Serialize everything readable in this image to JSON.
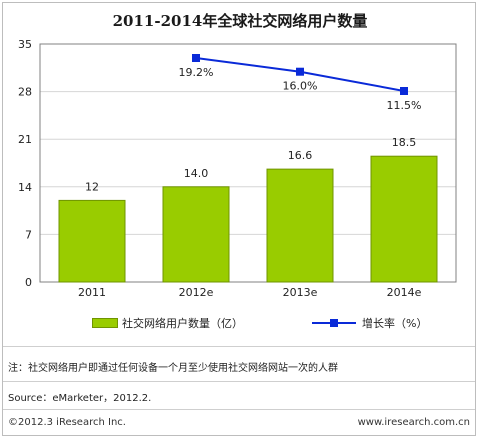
{
  "title": "2011-2014年全球社交网络用户数量",
  "chart_data": {
    "type": "bar+line",
    "categories": [
      "2011",
      "2012e",
      "2013e",
      "2014e"
    ],
    "series": [
      {
        "name": "社交网络用户数量（亿）",
        "type": "bar",
        "values": [
          12,
          14.0,
          16.6,
          18.5
        ],
        "labels": [
          "12",
          "14.0",
          "16.6",
          "18.5"
        ],
        "color": "#99cc00"
      },
      {
        "name": "增长率（%）",
        "type": "line",
        "x": [
          "2012e",
          "2013e",
          "2014e"
        ],
        "values": [
          19.2,
          16.0,
          11.5
        ],
        "labels": [
          "19.2%",
          "16.0%",
          "11.5%"
        ],
        "color": "#0a2ad8"
      }
    ],
    "y_ticks": [
      "0",
      "7",
      "14",
      "21",
      "28",
      "35"
    ],
    "ylim": [
      0,
      35
    ],
    "line_ylim": [
      11.5,
      19.2
    ],
    "grid": true,
    "legend_position": "bottom"
  },
  "legend": {
    "bar_label": "社交网络用户数量（亿）",
    "line_label": "增长率（%）"
  },
  "note": "注：社交网络用户即通过任何设备一个月至少使用社交网络网站一次的人群",
  "source": "Source：eMarketer，2012.2.",
  "footer": {
    "copyright": "©2012.3 iResearch Inc.",
    "website": "www.iresearch.com.cn"
  }
}
